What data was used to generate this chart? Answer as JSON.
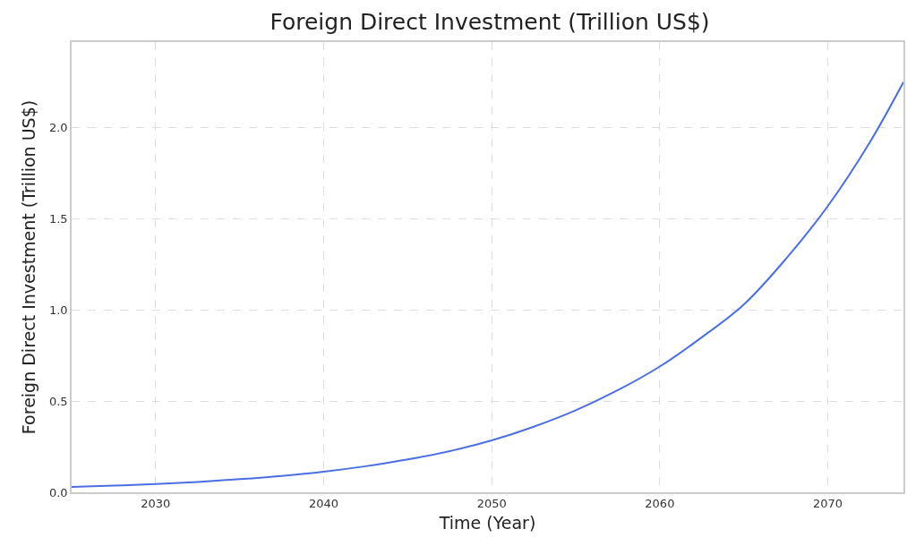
{
  "chart_data": {
    "type": "line",
    "title": "Foreign Direct Investment (Trillion US$)",
    "xlabel": "Time (Year)",
    "ylabel": "Foreign Direct Investment (Trillion US$)",
    "x": [
      2025,
      2027.5,
      2030,
      2032.5,
      2035,
      2037.5,
      2040,
      2042.5,
      2045,
      2047.5,
      2050,
      2052.5,
      2055,
      2057.5,
      2060,
      2062.5,
      2065,
      2067.5,
      2070,
      2072.5,
      2074.5
    ],
    "series": [
      {
        "color": "#4a6fe3",
        "values": [
          0.03,
          0.037,
          0.045,
          0.057,
          0.072,
          0.09,
          0.113,
          0.143,
          0.18,
          0.226,
          0.285,
          0.36,
          0.45,
          0.56,
          0.69,
          0.85,
          1.03,
          1.28,
          1.57,
          1.92,
          2.25
        ]
      }
    ],
    "xlim": [
      2025,
      2074.5
    ],
    "xticks": [
      2030,
      2040,
      2050,
      2060,
      2070
    ],
    "ylim": [
      0,
      2.47
    ],
    "yticks": [
      {
        "value": 0,
        "label": "0.0"
      },
      {
        "value": 0.5,
        "label": "0.5"
      },
      {
        "value": 1,
        "label": "1.0"
      },
      {
        "value": 1.5,
        "label": "1.5"
      },
      {
        "value": 2,
        "label": "2.0"
      }
    ],
    "grid": true,
    "marker": "none"
  }
}
